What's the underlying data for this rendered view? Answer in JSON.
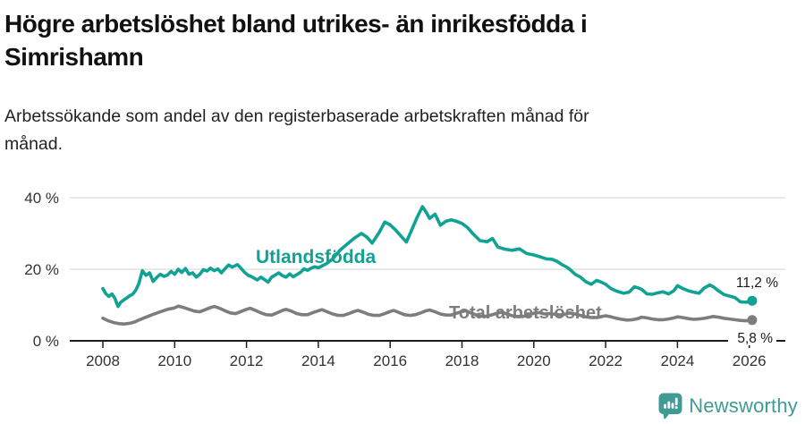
{
  "header": {
    "title_lines": [
      "Högre arbetslöshet bland utrikes- än inrikesfödda i",
      "Simrishamn"
    ],
    "subtitle_lines": [
      "Arbetssökande som andel av den registerbaserade arbetskraften månad för",
      "månad."
    ]
  },
  "chart_data": {
    "type": "line",
    "unit": "%",
    "title": "Högre arbetslöshet bland utrikes- än inrikesfödda i Simrishamn",
    "xlabel": "",
    "ylabel": "",
    "ylim": [
      0,
      40
    ],
    "x_range": [
      2008,
      2026.2
    ],
    "grid": "horizontal-only",
    "legend_position": "inline-labels",
    "colors": {
      "grid": "#d9d9d9",
      "axis": "#1c1c1c",
      "tick_text": "#333333",
      "end_label_text": "#1a1a1a"
    },
    "y_ticks": [
      {
        "value": 0,
        "label": "0 %"
      },
      {
        "value": 20,
        "label": "20 %"
      },
      {
        "value": 40,
        "label": "40 %"
      }
    ],
    "x_ticks": [
      2008,
      2010,
      2012,
      2014,
      2016,
      2018,
      2020,
      2022,
      2024,
      2026
    ],
    "series": [
      {
        "name": "Utlandsfödda",
        "color": "#10a295",
        "end_label": "11,2 %",
        "end_value": 11.2,
        "points": [
          [
            2008.0,
            14.6
          ],
          [
            2008.08,
            13.2
          ],
          [
            2008.17,
            12.4
          ],
          [
            2008.25,
            13.1
          ],
          [
            2008.33,
            12.0
          ],
          [
            2008.42,
            9.6
          ],
          [
            2008.5,
            10.8
          ],
          [
            2008.58,
            11.4
          ],
          [
            2008.67,
            12.0
          ],
          [
            2008.75,
            12.6
          ],
          [
            2008.83,
            13.0
          ],
          [
            2008.92,
            14.2
          ],
          [
            2009.0,
            16.0
          ],
          [
            2009.1,
            19.6
          ],
          [
            2009.2,
            18.3
          ],
          [
            2009.3,
            19.0
          ],
          [
            2009.4,
            16.6
          ],
          [
            2009.5,
            17.7
          ],
          [
            2009.6,
            18.6
          ],
          [
            2009.7,
            18.0
          ],
          [
            2009.8,
            18.4
          ],
          [
            2009.9,
            19.4
          ],
          [
            2010.0,
            18.6
          ],
          [
            2010.1,
            20.0
          ],
          [
            2010.2,
            19.1
          ],
          [
            2010.3,
            20.2
          ],
          [
            2010.4,
            18.6
          ],
          [
            2010.5,
            19.0
          ],
          [
            2010.6,
            17.8
          ],
          [
            2010.7,
            18.6
          ],
          [
            2010.8,
            19.9
          ],
          [
            2010.9,
            19.5
          ],
          [
            2011.0,
            20.3
          ],
          [
            2011.1,
            19.6
          ],
          [
            2011.2,
            20.1
          ],
          [
            2011.3,
            19.0
          ],
          [
            2011.4,
            20.1
          ],
          [
            2011.5,
            21.2
          ],
          [
            2011.6,
            20.6
          ],
          [
            2011.75,
            21.3
          ],
          [
            2011.85,
            20.2
          ],
          [
            2011.95,
            19.1
          ],
          [
            2012.05,
            18.3
          ],
          [
            2012.15,
            17.9
          ],
          [
            2012.3,
            17.0
          ],
          [
            2012.4,
            17.8
          ],
          [
            2012.5,
            17.1
          ],
          [
            2012.6,
            16.4
          ],
          [
            2012.7,
            17.8
          ],
          [
            2012.8,
            18.4
          ],
          [
            2012.9,
            19.0
          ],
          [
            2013.0,
            18.2
          ],
          [
            2013.1,
            17.8
          ],
          [
            2013.2,
            18.7
          ],
          [
            2013.3,
            17.9
          ],
          [
            2013.4,
            18.5
          ],
          [
            2013.5,
            19.1
          ],
          [
            2013.6,
            20.1
          ],
          [
            2013.7,
            19.7
          ],
          [
            2013.8,
            20.3
          ],
          [
            2013.9,
            20.7
          ],
          [
            2014.0,
            20.4
          ],
          [
            2014.2,
            21.4
          ],
          [
            2014.4,
            22.9
          ],
          [
            2014.6,
            25.3
          ],
          [
            2014.8,
            27.0
          ],
          [
            2015.0,
            28.7
          ],
          [
            2015.2,
            30.0
          ],
          [
            2015.35,
            29.0
          ],
          [
            2015.5,
            27.3
          ],
          [
            2015.7,
            30.4
          ],
          [
            2015.85,
            33.2
          ],
          [
            2016.0,
            32.4
          ],
          [
            2016.15,
            31.0
          ],
          [
            2016.3,
            29.3
          ],
          [
            2016.45,
            27.6
          ],
          [
            2016.6,
            31.0
          ],
          [
            2016.75,
            34.5
          ],
          [
            2016.9,
            37.5
          ],
          [
            2017.0,
            36.0
          ],
          [
            2017.1,
            34.2
          ],
          [
            2017.25,
            35.4
          ],
          [
            2017.4,
            32.3
          ],
          [
            2017.55,
            33.4
          ],
          [
            2017.7,
            33.8
          ],
          [
            2017.85,
            33.4
          ],
          [
            2018.0,
            32.8
          ],
          [
            2018.15,
            31.7
          ],
          [
            2018.3,
            30.0
          ],
          [
            2018.5,
            28.0
          ],
          [
            2018.7,
            27.7
          ],
          [
            2018.85,
            28.6
          ],
          [
            2019.0,
            26.2
          ],
          [
            2019.2,
            25.6
          ],
          [
            2019.4,
            25.3
          ],
          [
            2019.6,
            25.7
          ],
          [
            2019.8,
            24.4
          ],
          [
            2020.0,
            24.0
          ],
          [
            2020.2,
            23.4
          ],
          [
            2020.35,
            22.9
          ],
          [
            2020.5,
            22.8
          ],
          [
            2020.65,
            22.2
          ],
          [
            2020.8,
            21.2
          ],
          [
            2020.9,
            20.7
          ],
          [
            2021.0,
            20.0
          ],
          [
            2021.15,
            18.6
          ],
          [
            2021.3,
            17.8
          ],
          [
            2021.45,
            16.5
          ],
          [
            2021.6,
            15.8
          ],
          [
            2021.75,
            16.9
          ],
          [
            2021.9,
            16.3
          ],
          [
            2022.0,
            15.8
          ],
          [
            2022.15,
            14.6
          ],
          [
            2022.3,
            13.9
          ],
          [
            2022.5,
            13.3
          ],
          [
            2022.65,
            13.6
          ],
          [
            2022.8,
            15.1
          ],
          [
            2022.9,
            14.8
          ],
          [
            2023.0,
            14.4
          ],
          [
            2023.15,
            13.1
          ],
          [
            2023.3,
            13.0
          ],
          [
            2023.45,
            13.4
          ],
          [
            2023.6,
            13.7
          ],
          [
            2023.75,
            13.1
          ],
          [
            2023.9,
            14.0
          ],
          [
            2024.0,
            15.4
          ],
          [
            2024.15,
            14.6
          ],
          [
            2024.3,
            14.0
          ],
          [
            2024.45,
            13.6
          ],
          [
            2024.6,
            13.3
          ],
          [
            2024.75,
            14.8
          ],
          [
            2024.9,
            15.6
          ],
          [
            2025.0,
            15.1
          ],
          [
            2025.15,
            13.9
          ],
          [
            2025.3,
            12.9
          ],
          [
            2025.45,
            12.5
          ],
          [
            2025.6,
            12.1
          ],
          [
            2025.75,
            10.9
          ],
          [
            2025.9,
            10.8
          ],
          [
            2026.0,
            10.9
          ],
          [
            2026.08,
            11.2
          ]
        ]
      },
      {
        "name": "Total arbetslöshet",
        "color": "#7d7d7d",
        "end_label": "5,8 %",
        "end_value": 5.8,
        "points": [
          [
            2008.0,
            6.3
          ],
          [
            2008.15,
            5.6
          ],
          [
            2008.3,
            5.1
          ],
          [
            2008.45,
            4.8
          ],
          [
            2008.6,
            4.7
          ],
          [
            2008.75,
            4.9
          ],
          [
            2008.9,
            5.3
          ],
          [
            2009.0,
            5.8
          ],
          [
            2009.2,
            6.6
          ],
          [
            2009.4,
            7.4
          ],
          [
            2009.6,
            8.1
          ],
          [
            2009.8,
            8.8
          ],
          [
            2010.0,
            9.2
          ],
          [
            2010.1,
            9.7
          ],
          [
            2010.25,
            9.3
          ],
          [
            2010.4,
            8.8
          ],
          [
            2010.55,
            8.3
          ],
          [
            2010.7,
            8.1
          ],
          [
            2010.85,
            8.7
          ],
          [
            2011.0,
            9.3
          ],
          [
            2011.1,
            9.6
          ],
          [
            2011.25,
            9.1
          ],
          [
            2011.4,
            8.4
          ],
          [
            2011.55,
            7.8
          ],
          [
            2011.7,
            7.6
          ],
          [
            2011.85,
            8.2
          ],
          [
            2012.0,
            8.8
          ],
          [
            2012.1,
            9.1
          ],
          [
            2012.25,
            8.5
          ],
          [
            2012.4,
            7.8
          ],
          [
            2012.55,
            7.3
          ],
          [
            2012.7,
            7.2
          ],
          [
            2012.85,
            7.8
          ],
          [
            2013.0,
            8.5
          ],
          [
            2013.1,
            8.8
          ],
          [
            2013.25,
            8.3
          ],
          [
            2013.4,
            7.6
          ],
          [
            2013.55,
            7.3
          ],
          [
            2013.7,
            7.3
          ],
          [
            2013.85,
            7.9
          ],
          [
            2014.0,
            8.4
          ],
          [
            2014.1,
            8.7
          ],
          [
            2014.25,
            8.1
          ],
          [
            2014.4,
            7.5
          ],
          [
            2014.55,
            7.1
          ],
          [
            2014.7,
            7.1
          ],
          [
            2014.85,
            7.6
          ],
          [
            2015.0,
            8.2
          ],
          [
            2015.1,
            8.5
          ],
          [
            2015.25,
            8.0
          ],
          [
            2015.4,
            7.4
          ],
          [
            2015.55,
            7.1
          ],
          [
            2015.7,
            7.1
          ],
          [
            2015.85,
            7.6
          ],
          [
            2016.0,
            8.2
          ],
          [
            2016.1,
            8.5
          ],
          [
            2016.25,
            7.9
          ],
          [
            2016.4,
            7.3
          ],
          [
            2016.55,
            7.1
          ],
          [
            2016.7,
            7.3
          ],
          [
            2016.85,
            7.8
          ],
          [
            2017.0,
            8.4
          ],
          [
            2017.1,
            8.6
          ],
          [
            2017.25,
            8.1
          ],
          [
            2017.4,
            7.5
          ],
          [
            2017.55,
            7.2
          ],
          [
            2017.7,
            7.2
          ],
          [
            2017.85,
            7.7
          ],
          [
            2018.0,
            8.2
          ],
          [
            2018.1,
            8.4
          ],
          [
            2018.25,
            7.8
          ],
          [
            2018.4,
            7.2
          ],
          [
            2018.55,
            6.9
          ],
          [
            2018.7,
            6.9
          ],
          [
            2018.85,
            7.3
          ],
          [
            2019.0,
            7.8
          ],
          [
            2019.1,
            8.0
          ],
          [
            2019.25,
            7.5
          ],
          [
            2019.4,
            7.0
          ],
          [
            2019.55,
            6.8
          ],
          [
            2019.7,
            6.8
          ],
          [
            2019.85,
            7.2
          ],
          [
            2020.0,
            7.7
          ],
          [
            2020.15,
            7.9
          ],
          [
            2020.3,
            7.5
          ],
          [
            2020.45,
            7.6
          ],
          [
            2020.6,
            7.4
          ],
          [
            2020.75,
            7.2
          ],
          [
            2020.9,
            7.5
          ],
          [
            2021.0,
            7.8
          ],
          [
            2021.15,
            7.5
          ],
          [
            2021.3,
            7.1
          ],
          [
            2021.45,
            6.7
          ],
          [
            2021.6,
            6.5
          ],
          [
            2021.75,
            6.5
          ],
          [
            2021.9,
            6.8
          ],
          [
            2022.0,
            7.0
          ],
          [
            2022.15,
            6.7
          ],
          [
            2022.3,
            6.3
          ],
          [
            2022.45,
            6.0
          ],
          [
            2022.6,
            5.8
          ],
          [
            2022.75,
            5.9
          ],
          [
            2022.9,
            6.2
          ],
          [
            2023.0,
            6.6
          ],
          [
            2023.15,
            6.4
          ],
          [
            2023.3,
            6.1
          ],
          [
            2023.45,
            5.9
          ],
          [
            2023.6,
            5.9
          ],
          [
            2023.75,
            6.1
          ],
          [
            2023.9,
            6.4
          ],
          [
            2024.0,
            6.7
          ],
          [
            2024.15,
            6.5
          ],
          [
            2024.3,
            6.2
          ],
          [
            2024.45,
            6.0
          ],
          [
            2024.6,
            6.1
          ],
          [
            2024.75,
            6.3
          ],
          [
            2024.9,
            6.6
          ],
          [
            2025.0,
            6.8
          ],
          [
            2025.15,
            6.6
          ],
          [
            2025.3,
            6.3
          ],
          [
            2025.45,
            6.1
          ],
          [
            2025.6,
            5.9
          ],
          [
            2025.75,
            5.7
          ],
          [
            2025.9,
            5.6
          ],
          [
            2026.08,
            5.8
          ]
        ]
      }
    ]
  },
  "footer": {
    "brand": "Newsworthy",
    "brand_color": "#3e9b95",
    "logo_icon": "bar-chart-speech-bubble"
  }
}
